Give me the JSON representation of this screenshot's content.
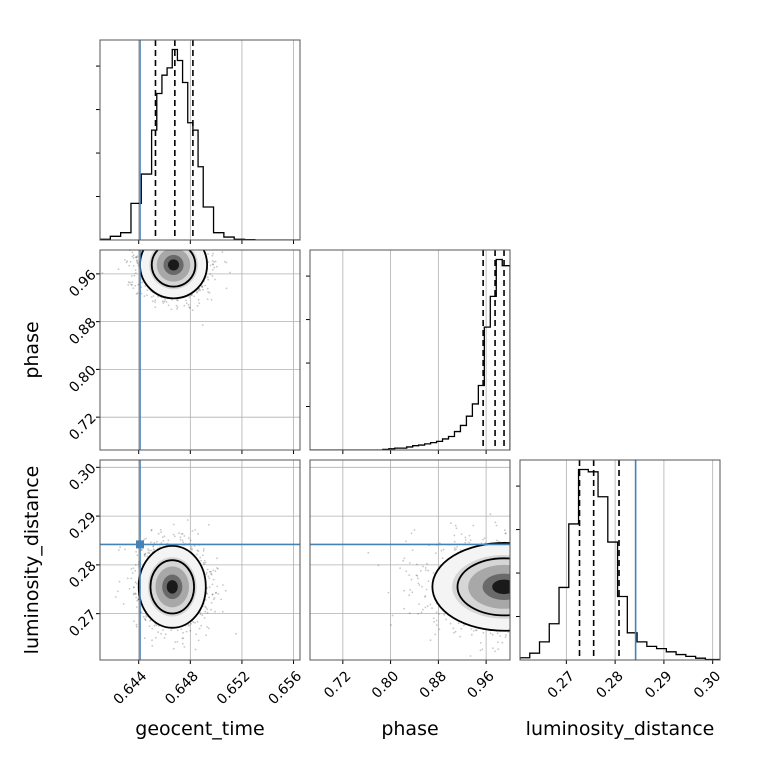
{
  "chart_data": {
    "type": "corner",
    "parameters": [
      "geocent_time",
      "phase",
      "luminosity_distance"
    ],
    "axis_labels": {
      "geocent_time": "geocent_time",
      "phase": "phase",
      "luminosity_distance": "luminosity_distance"
    },
    "ranges": {
      "geocent_time": [
        0.641,
        0.6565
      ],
      "phase": [
        0.665,
        1.0
      ],
      "luminosity_distance": [
        0.2605,
        0.3015
      ]
    },
    "ticks": {
      "geocent_time": [
        0.644,
        0.648,
        0.652,
        0.656
      ],
      "phase": [
        0.72,
        0.8,
        0.88,
        0.96
      ],
      "luminosity_distance": [
        0.27,
        0.28,
        0.29,
        0.3
      ]
    },
    "tick_labels": {
      "geocent_time": [
        "0.644",
        "0.648",
        "0.652",
        "0.656"
      ],
      "phase": [
        "0.72",
        "0.80",
        "0.88",
        "0.96"
      ],
      "luminosity_distance": [
        "0.27",
        "0.28",
        "0.29",
        "0.30"
      ]
    },
    "injection_values": {
      "geocent_time": 0.6441,
      "luminosity_distance": 0.2842
    },
    "injection_color": "#4682b4",
    "quantile_lines": {
      "geocent_time": [
        0.6453,
        0.6468,
        0.6482
      ],
      "phase": [
        0.955,
        0.975,
        0.99
      ],
      "luminosity_distance": [
        0.2727,
        0.2756,
        0.2808
      ]
    },
    "histograms": {
      "geocent_time": {
        "bin_edges": [
          0.641,
          0.6418,
          0.6426,
          0.6434,
          0.6442,
          0.645,
          0.6454,
          0.6458,
          0.6462,
          0.6466,
          0.647,
          0.6474,
          0.6478,
          0.6482,
          0.6486,
          0.649,
          0.6498,
          0.6506,
          0.6514,
          0.6522,
          0.653,
          0.6565
        ],
        "counts": [
          2,
          10,
          20,
          100,
          180,
          300,
          400,
          450,
          470,
          520,
          490,
          430,
          320,
          300,
          200,
          90,
          20,
          8,
          2,
          1,
          0
        ]
      },
      "phase": {
        "bin_edges": [
          0.665,
          0.787,
          0.797,
          0.807,
          0.817,
          0.827,
          0.837,
          0.847,
          0.857,
          0.867,
          0.877,
          0.887,
          0.897,
          0.907,
          0.917,
          0.927,
          0.937,
          0.947,
          0.957,
          0.967,
          0.977,
          0.987,
          1.0
        ],
        "counts": [
          0,
          1,
          2,
          3,
          3,
          5,
          7,
          8,
          10,
          12,
          14,
          18,
          22,
          30,
          40,
          55,
          75,
          105,
          200,
          250,
          310,
          300
        ]
      },
      "luminosity_distance": {
        "bin_edges": [
          0.2605,
          0.2625,
          0.2645,
          0.2665,
          0.2685,
          0.2705,
          0.2725,
          0.2745,
          0.2765,
          0.2785,
          0.2805,
          0.2825,
          0.2845,
          0.2865,
          0.2885,
          0.2905,
          0.2925,
          0.2945,
          0.2965,
          0.2985,
          0.3015
        ],
        "counts": [
          5,
          15,
          40,
          80,
          160,
          300,
          420,
          415,
          360,
          260,
          140,
          60,
          40,
          30,
          25,
          18,
          12,
          8,
          4,
          1
        ]
      }
    },
    "density_2d": {
      "phase_vs_geocent_time": {
        "center": [
          0.6467,
          0.975
        ],
        "spread": [
          0.0013,
          0.028
        ],
        "mode": [
          0.6467,
          0.972
        ]
      },
      "luminosity_distance_vs_geocent_time": {
        "center": [
          0.6466,
          0.2755
        ],
        "spread": [
          0.0013,
          0.0042
        ],
        "mode": [
          0.6466,
          0.2755
        ]
      },
      "luminosity_distance_vs_phase": {
        "center": [
          0.99,
          0.2755
        ],
        "spread": [
          0.06,
          0.0045
        ],
        "mode": [
          0.985,
          0.2755
        ]
      }
    },
    "grid": true
  }
}
